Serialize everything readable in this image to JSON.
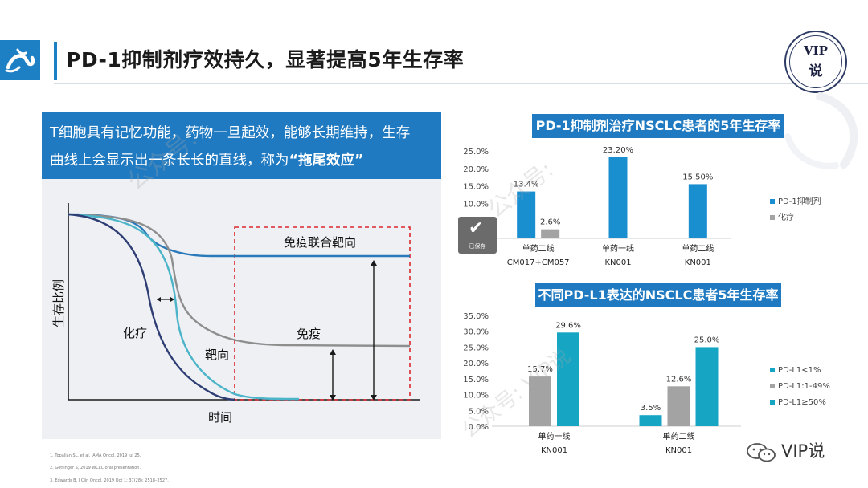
{
  "header": {
    "title": "PD-1抑制剂疗效持久，显著提高5年生存率",
    "badge_line1": "VIP",
    "badge_line2": "说"
  },
  "callout": {
    "line1": "T细胞具有记忆功能，药物一旦起效，能够长期维持，生存",
    "line2_prefix": "曲线上会显示出一条长长的直线，称为",
    "line2_emph": "“拖尾效应”"
  },
  "survival_diagram": {
    "ylabel": "生存比例",
    "xlabel": "时间",
    "curve_labels": [
      "免疫联合靶向",
      "免疫",
      "化疗",
      "靶向"
    ],
    "colors": {
      "immuno_combo": "#2a79b8",
      "immuno": "#8e8e8e",
      "chemo": "#2e3d73",
      "targeted": "#4cb4c9",
      "box": "#d9282f"
    }
  },
  "references": [
    "1.    Topalian SL, et al. JAMA Oncol. 2019 Jul 25.",
    "2.    Gettinger S, 2019 WCLC oral presentation.",
    "3.    Edwards B, J Clin Oncol. 2019 Oct 1; 37(28): 2518–2527."
  ],
  "chart_data": [
    {
      "type": "bar",
      "title": "PD-1抑制剂治疗NSCLC患者的5年生存率",
      "categories": [
        "单药二线\nCM017+CM057",
        "单药一线\nKN001",
        "单药二线\nKN001"
      ],
      "category_lines": [
        [
          "单药二线",
          "CM017+CM057"
        ],
        [
          "单药一线",
          "KN001"
        ],
        [
          "单药二线",
          "KN001"
        ]
      ],
      "series": [
        {
          "name": "PD-1抑制剂",
          "values": [
            13.4,
            23.2,
            15.5
          ],
          "labels": [
            "13.4%",
            "23.20%",
            "15.50%"
          ],
          "color": "#1a8fd0"
        },
        {
          "name": "化疗",
          "values": [
            2.6,
            null,
            null
          ],
          "labels": [
            "2.6%",
            "",
            ""
          ],
          "color": "#a3a3a3"
        }
      ],
      "ylim": [
        0,
        25
      ],
      "yticks": [
        "0.0%",
        "5.0%",
        "10.0%",
        "15.0%",
        "20.0%",
        "25.0%"
      ],
      "legend": "right"
    },
    {
      "type": "bar",
      "title": "不同PD-L1表达的NSCLC患者5年生存率",
      "categories": [
        "单药一线\nKN001",
        "单药二线\nKN001"
      ],
      "category_lines": [
        [
          "单药一线",
          "KN001"
        ],
        [
          "单药二线",
          "KN001"
        ]
      ],
      "series": [
        {
          "name": "PD-L1<1%",
          "values": [
            null,
            3.5
          ],
          "labels": [
            "",
            "3.5%"
          ],
          "color": "#16a6c4"
        },
        {
          "name": "PD-L1:1-49%",
          "values": [
            15.7,
            12.6
          ],
          "labels": [
            "15.7%",
            "12.6%"
          ],
          "color": "#a3a3a3"
        },
        {
          "name": "PD-L1≥50%",
          "values": [
            29.6,
            25.0
          ],
          "labels": [
            "29.6%",
            "25.0%"
          ],
          "color": "#16a6c4"
        }
      ],
      "ylim": [
        0,
        35
      ],
      "yticks": [
        "0.0%",
        "5.0%",
        "10.0%",
        "15.0%",
        "20.0%",
        "25.0%",
        "30.0%",
        "35.0%"
      ],
      "legend": "right"
    }
  ],
  "saved_badge": {
    "icon": "check-icon",
    "label": "已保存"
  },
  "watermarks": [
    "公众号:",
    "公众号:",
    "公众号: VIP说"
  ],
  "footer": {
    "brand": "VIP说",
    "icon": "wechat-icon"
  }
}
